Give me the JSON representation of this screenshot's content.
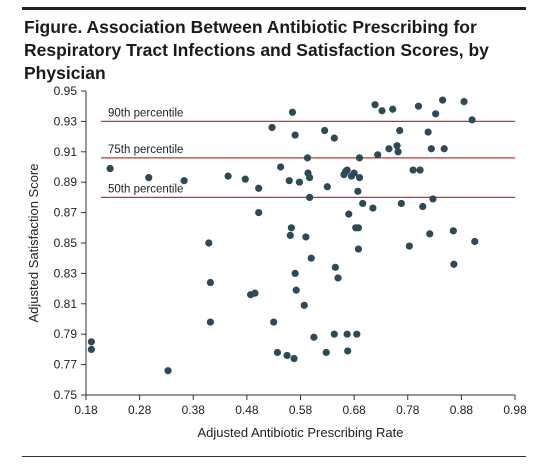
{
  "figure": {
    "title": "Figure. Association Between Antibiotic Prescribing for Respiratory Tract Infections and Satisfaction Scores, by Physician"
  },
  "chart_data": {
    "type": "scatter",
    "title": "Figure. Association Between Antibiotic Prescribing for Respiratory Tract Infections and Satisfaction Scores, by Physician",
    "xlabel": "Adjusted Antibiotic Prescribing Rate",
    "ylabel": "Adjusted Satisfaction Score",
    "xlim": [
      0.18,
      0.98
    ],
    "ylim": [
      0.75,
      0.95
    ],
    "xticks": [
      0.18,
      0.28,
      0.38,
      0.48,
      0.58,
      0.68,
      0.78,
      0.88,
      0.98
    ],
    "yticks": [
      0.75,
      0.77,
      0.79,
      0.81,
      0.83,
      0.85,
      0.87,
      0.89,
      0.91,
      0.93,
      0.95
    ],
    "x_tick_labels": [
      "0.18",
      "0.28",
      "0.38",
      "0.48",
      "0.58",
      "0.68",
      "0.78",
      "0.88",
      "0.98"
    ],
    "y_tick_labels": [
      "0.75",
      "0.77",
      "0.79",
      "0.81",
      "0.83",
      "0.85",
      "0.87",
      "0.89",
      "0.91",
      "0.93",
      "0.95"
    ],
    "grid": false,
    "point_color": "#2e4a57",
    "reference_line_color": "#c8303d",
    "reference_lines": [
      {
        "label": "90th percentile",
        "y": 0.93
      },
      {
        "label": "75th percentile",
        "y": 0.906
      },
      {
        "label": "50th percentile",
        "y": 0.88
      }
    ],
    "points": [
      {
        "x": 0.19,
        "y": 0.785
      },
      {
        "x": 0.19,
        "y": 0.78
      },
      {
        "x": 0.225,
        "y": 0.899
      },
      {
        "x": 0.297,
        "y": 0.893
      },
      {
        "x": 0.333,
        "y": 0.766
      },
      {
        "x": 0.363,
        "y": 0.891
      },
      {
        "x": 0.409,
        "y": 0.85
      },
      {
        "x": 0.412,
        "y": 0.824
      },
      {
        "x": 0.412,
        "y": 0.798
      },
      {
        "x": 0.445,
        "y": 0.894
      },
      {
        "x": 0.477,
        "y": 0.892
      },
      {
        "x": 0.487,
        "y": 0.816
      },
      {
        "x": 0.495,
        "y": 0.817
      },
      {
        "x": 0.502,
        "y": 0.886
      },
      {
        "x": 0.502,
        "y": 0.87
      },
      {
        "x": 0.527,
        "y": 0.926
      },
      {
        "x": 0.53,
        "y": 0.798
      },
      {
        "x": 0.537,
        "y": 0.778
      },
      {
        "x": 0.543,
        "y": 0.9
      },
      {
        "x": 0.555,
        "y": 0.776
      },
      {
        "x": 0.559,
        "y": 0.891
      },
      {
        "x": 0.561,
        "y": 0.855
      },
      {
        "x": 0.563,
        "y": 0.86
      },
      {
        "x": 0.565,
        "y": 0.936
      },
      {
        "x": 0.568,
        "y": 0.774
      },
      {
        "x": 0.57,
        "y": 0.921
      },
      {
        "x": 0.57,
        "y": 0.83
      },
      {
        "x": 0.572,
        "y": 0.819
      },
      {
        "x": 0.578,
        "y": 0.89
      },
      {
        "x": 0.587,
        "y": 0.809
      },
      {
        "x": 0.59,
        "y": 0.854
      },
      {
        "x": 0.593,
        "y": 0.906
      },
      {
        "x": 0.594,
        "y": 0.896
      },
      {
        "x": 0.597,
        "y": 0.893
      },
      {
        "x": 0.597,
        "y": 0.88
      },
      {
        "x": 0.6,
        "y": 0.84
      },
      {
        "x": 0.605,
        "y": 0.788
      },
      {
        "x": 0.625,
        "y": 0.924
      },
      {
        "x": 0.628,
        "y": 0.778
      },
      {
        "x": 0.63,
        "y": 0.887
      },
      {
        "x": 0.643,
        "y": 0.919
      },
      {
        "x": 0.643,
        "y": 0.79
      },
      {
        "x": 0.645,
        "y": 0.834
      },
      {
        "x": 0.65,
        "y": 0.827
      },
      {
        "x": 0.661,
        "y": 0.895
      },
      {
        "x": 0.664,
        "y": 0.897
      },
      {
        "x": 0.667,
        "y": 0.898
      },
      {
        "x": 0.667,
        "y": 0.79
      },
      {
        "x": 0.668,
        "y": 0.779
      },
      {
        "x": 0.67,
        "y": 0.869
      },
      {
        "x": 0.675,
        "y": 0.894
      },
      {
        "x": 0.68,
        "y": 0.896
      },
      {
        "x": 0.683,
        "y": 0.86
      },
      {
        "x": 0.685,
        "y": 0.79
      },
      {
        "x": 0.687,
        "y": 0.884
      },
      {
        "x": 0.688,
        "y": 0.86
      },
      {
        "x": 0.688,
        "y": 0.846
      },
      {
        "x": 0.69,
        "y": 0.906
      },
      {
        "x": 0.69,
        "y": 0.893
      },
      {
        "x": 0.696,
        "y": 0.876
      },
      {
        "x": 0.715,
        "y": 0.873
      },
      {
        "x": 0.719,
        "y": 0.941
      },
      {
        "x": 0.724,
        "y": 0.908
      },
      {
        "x": 0.732,
        "y": 0.937
      },
      {
        "x": 0.745,
        "y": 0.912
      },
      {
        "x": 0.752,
        "y": 0.938
      },
      {
        "x": 0.76,
        "y": 0.914
      },
      {
        "x": 0.762,
        "y": 0.91
      },
      {
        "x": 0.765,
        "y": 0.924
      },
      {
        "x": 0.768,
        "y": 0.876
      },
      {
        "x": 0.783,
        "y": 0.848
      },
      {
        "x": 0.79,
        "y": 0.898
      },
      {
        "x": 0.8,
        "y": 0.94
      },
      {
        "x": 0.803,
        "y": 0.898
      },
      {
        "x": 0.808,
        "y": 0.874
      },
      {
        "x": 0.818,
        "y": 0.923
      },
      {
        "x": 0.821,
        "y": 0.856
      },
      {
        "x": 0.824,
        "y": 0.912
      },
      {
        "x": 0.827,
        "y": 0.879
      },
      {
        "x": 0.832,
        "y": 0.935
      },
      {
        "x": 0.845,
        "y": 0.944
      },
      {
        "x": 0.848,
        "y": 0.912
      },
      {
        "x": 0.865,
        "y": 0.858
      },
      {
        "x": 0.866,
        "y": 0.836
      },
      {
        "x": 0.885,
        "y": 0.943
      },
      {
        "x": 0.9,
        "y": 0.931
      },
      {
        "x": 0.905,
        "y": 0.851
      }
    ]
  }
}
